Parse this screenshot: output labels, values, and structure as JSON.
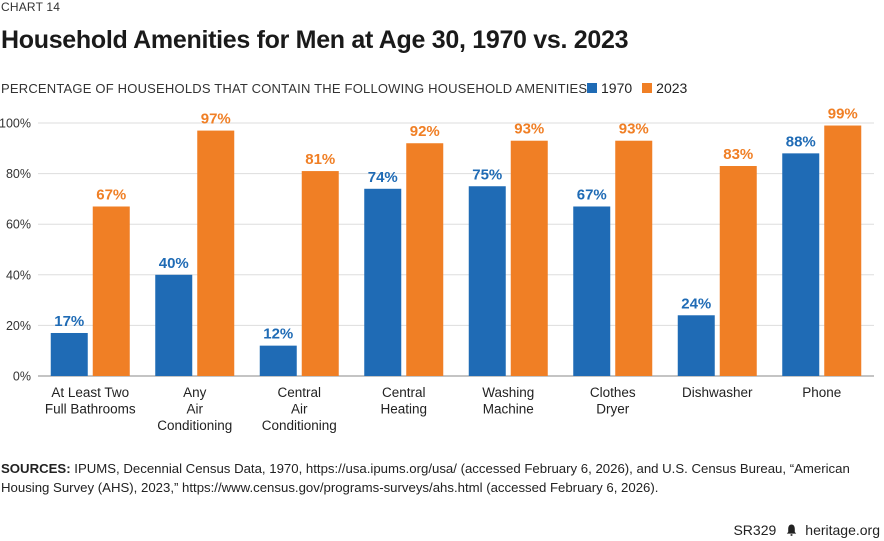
{
  "header": {
    "chart_number": "CHART 14",
    "title": "Household Amenities for Men at Age 30, 1970 vs. 2023",
    "subtitle": "PERCENTAGE OF HOUSEHOLDS THAT CONTAIN THE FOLLOWING HOUSEHOLD AMENITIES"
  },
  "colors": {
    "series_1970": "#1f6bb5",
    "series_2023": "#f07f25",
    "gridline": "#dddddd"
  },
  "chart_data": {
    "type": "bar",
    "title": "Household Amenities for Men at Age 30, 1970 vs. 2023",
    "subtitle": "PERCENTAGE OF HOUSEHOLDS THAT CONTAIN THE FOLLOWING HOUSEHOLD AMENITIES",
    "categories": [
      [
        "At Least Two",
        "Full Bathrooms"
      ],
      [
        "Any",
        "Air",
        "Conditioning"
      ],
      [
        "Central",
        "Air",
        "Conditioning"
      ],
      [
        "Central",
        "Heating"
      ],
      [
        "Washing",
        "Machine"
      ],
      [
        "Clothes",
        "Dryer"
      ],
      [
        "Dishwasher"
      ],
      [
        "Phone"
      ]
    ],
    "series": [
      {
        "name": "1970",
        "values": [
          17,
          40,
          12,
          74,
          75,
          67,
          24,
          88
        ]
      },
      {
        "name": "2023",
        "values": [
          67,
          97,
          81,
          92,
          93,
          93,
          83,
          99
        ]
      }
    ],
    "data_label_suffix": "%",
    "yticks": [
      "0%",
      "20%",
      "40%",
      "60%",
      "80%",
      "100%"
    ],
    "ylim": [
      0,
      100
    ],
    "grid": true,
    "legend_position": "top-right"
  },
  "footer": {
    "sources_label": "SOURCES:",
    "sources_text": "IPUMS, Decennial Census Data, 1970, https://usa.ipums.org/usa/ (accessed February 6, 2026), and U.S. Census Bureau, “American Housing Survey (AHS), 2023,” https://www.census.gov/programs-surveys/ahs.html (accessed February 6, 2026).",
    "report_id": "SR329",
    "site": "heritage.org",
    "logo_icon": "liberty-bell-icon"
  }
}
